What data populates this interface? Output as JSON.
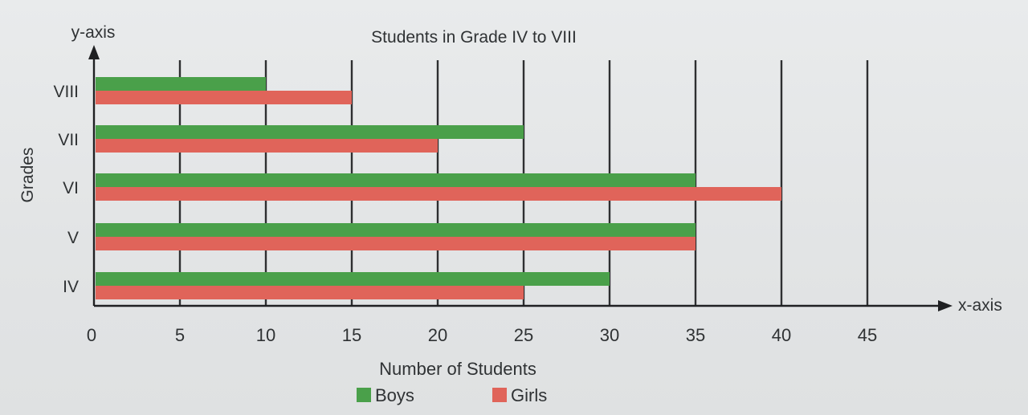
{
  "chart_data": {
    "type": "bar",
    "orientation": "horizontal",
    "title": "Students in Grade IV to VIII",
    "xlabel": "Number of Students",
    "ylabel": "Grades",
    "x_axis_label": "x-axis",
    "y_axis_label": "y-axis",
    "categories": [
      "IV",
      "V",
      "VI",
      "VII",
      "VIII"
    ],
    "series": [
      {
        "name": "Boys",
        "color": "#4aa04a",
        "values": [
          30,
          35,
          35,
          25,
          10
        ]
      },
      {
        "name": "Girls",
        "color": "#e0645a",
        "values": [
          25,
          35,
          40,
          20,
          15
        ]
      }
    ],
    "xticks": [
      0,
      5,
      10,
      15,
      20,
      25,
      30,
      35,
      40,
      45
    ],
    "xlim": [
      0,
      45
    ],
    "grid": "vertical",
    "legend": "bottom-center"
  }
}
